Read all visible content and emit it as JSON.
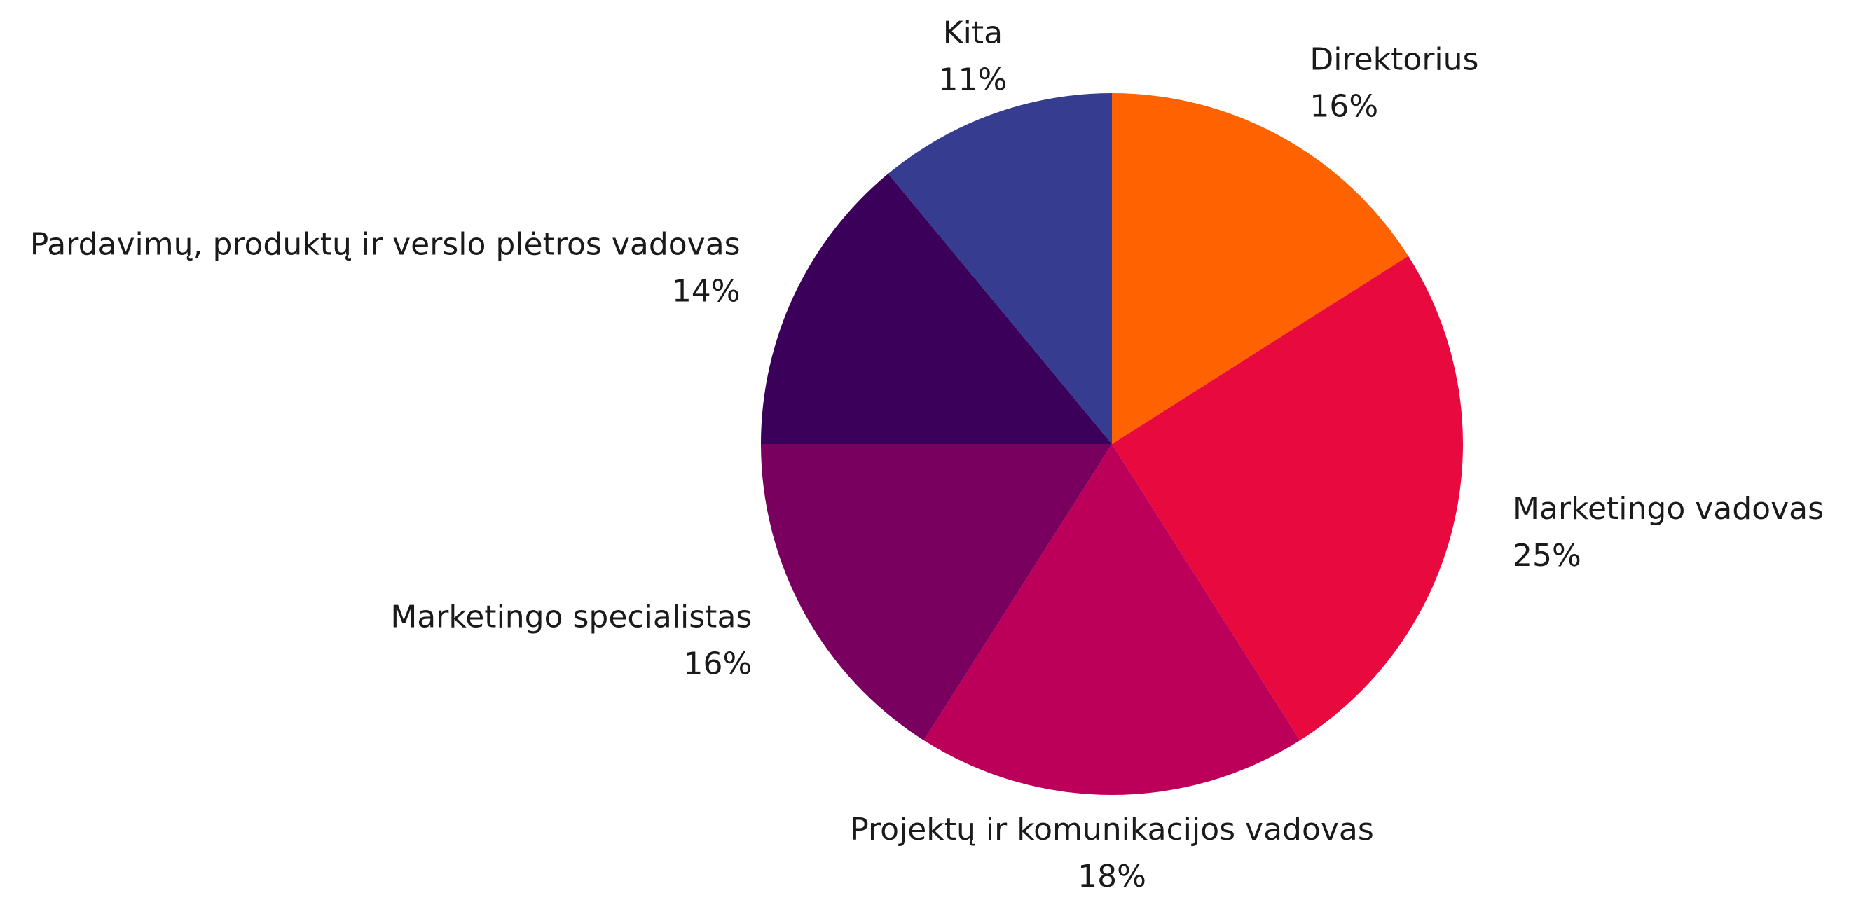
{
  "chart_data": {
    "type": "pie",
    "categories": [
      "Direktorius",
      "Marketingo vadovas",
      "Projektų ir komunikacijos vadovas",
      "Marketingo specialistas",
      "Pardavimų, produktų ir verslo plėtros vadovas",
      "Kita"
    ],
    "values": [
      16,
      25,
      18,
      16,
      14,
      11
    ],
    "value_labels": [
      "16%",
      "25%",
      "18%",
      "16%",
      "14%",
      "11%"
    ],
    "colors": [
      "#ff6200",
      "#e80a3f",
      "#bc005a",
      "#7a0060",
      "#3a005a",
      "#363c8f"
    ]
  }
}
